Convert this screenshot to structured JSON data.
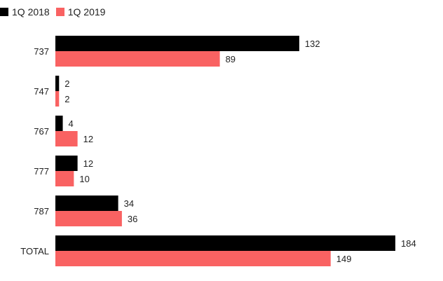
{
  "chart_data": {
    "type": "bar",
    "orientation": "horizontal",
    "categories": [
      "737",
      "747",
      "767",
      "777",
      "787",
      "TOTAL"
    ],
    "series": [
      {
        "name": "1Q 2018",
        "color": "#000000",
        "values": [
          132,
          2,
          4,
          12,
          34,
          184
        ]
      },
      {
        "name": "1Q 2019",
        "color": "#f96262",
        "values": [
          89,
          2,
          12,
          10,
          36,
          149
        ]
      }
    ],
    "title": "",
    "xlabel": "",
    "ylabel": "",
    "xlim": [
      0,
      184
    ],
    "grid": false,
    "legend_position": "top-left",
    "data_labels": true
  }
}
